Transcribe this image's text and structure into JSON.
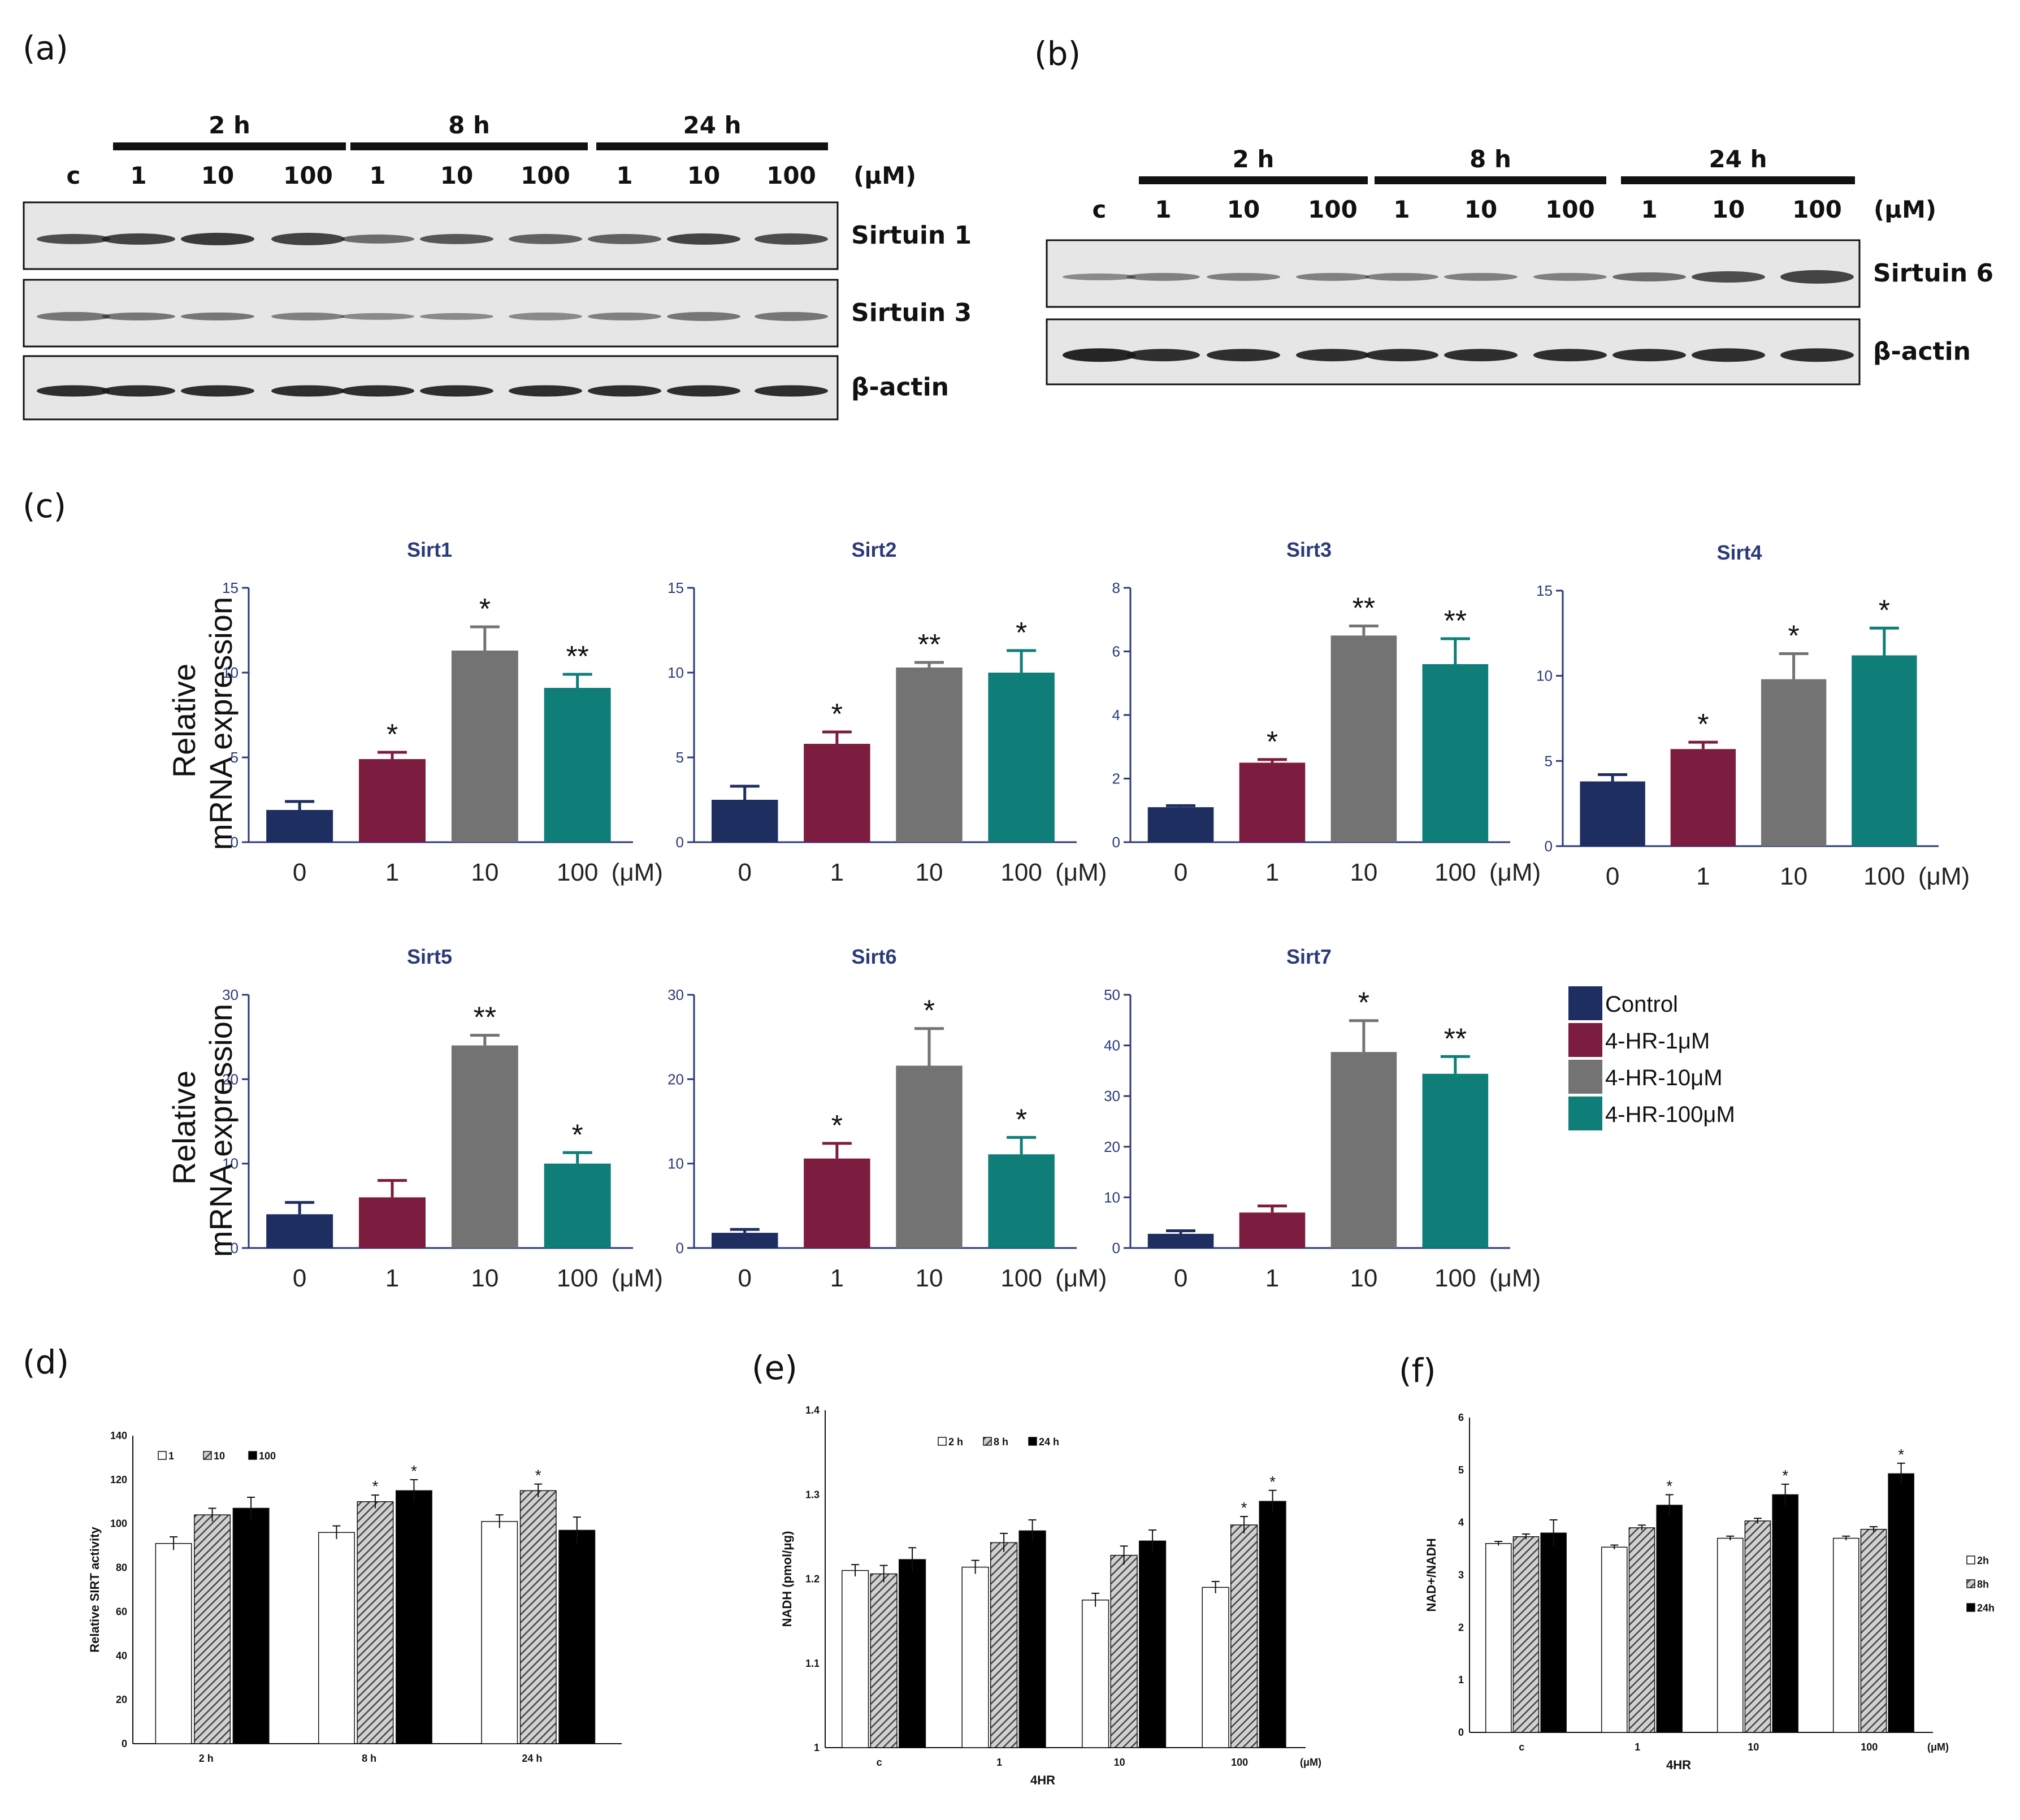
{
  "panels": {
    "a": "(a)",
    "b": "(b)",
    "c": "(c)",
    "d": "(d)",
    "e": "(e)",
    "f": "(f)"
  },
  "blots": {
    "time_headers": [
      "2 h",
      "8 h",
      "24 h"
    ],
    "control_label": "c",
    "dose_labels": [
      "1",
      "10",
      "100",
      "1",
      "10",
      "100",
      "1",
      "10",
      "100"
    ],
    "unit": "(μM)",
    "a_bands": [
      "Sirtuin 1",
      "Sirtuin 3",
      "β-actin"
    ],
    "b_bands": [
      "Sirtuin 6",
      "β-actin"
    ],
    "colors": {
      "band": "#1a1a1a",
      "membrane": "#e6e6e6"
    }
  },
  "panel_c": {
    "ylabel_line1": "Relative",
    "ylabel_line2": "mRNA expression",
    "colors": [
      "#1f2e60",
      "#7c1c3f",
      "#737373",
      "#0f7d78"
    ],
    "legend": [
      "Control",
      "4-HR-1μM",
      "4-HR-10μM",
      "4-HR-100μM"
    ]
  },
  "chart_data": [
    {
      "type": "bar",
      "title": "Sirt1",
      "categories": [
        "0",
        "1",
        "10",
        "100"
      ],
      "unit": "(μM)",
      "values": [
        1.9,
        4.9,
        11.3,
        9.1
      ],
      "errors": [
        0.5,
        0.4,
        1.4,
        0.8
      ],
      "sig": [
        "",
        "*",
        "*",
        "**"
      ],
      "ylim": [
        0,
        15
      ],
      "yticks": [
        "0",
        "5",
        "10",
        "15"
      ]
    },
    {
      "type": "bar",
      "title": "Sirt2",
      "categories": [
        "0",
        "1",
        "10",
        "100"
      ],
      "unit": "(μM)",
      "values": [
        2.5,
        5.8,
        10.3,
        10.0
      ],
      "errors": [
        0.8,
        0.7,
        0.3,
        1.3
      ],
      "sig": [
        "",
        "*",
        "**",
        "*"
      ],
      "ylim": [
        0,
        15
      ],
      "yticks": [
        "0",
        "5",
        "10",
        "15"
      ]
    },
    {
      "type": "bar",
      "title": "Sirt3",
      "categories": [
        "0",
        "1",
        "10",
        "100"
      ],
      "unit": "(μM)",
      "values": [
        1.1,
        2.5,
        6.5,
        5.6
      ],
      "errors": [
        0.05,
        0.1,
        0.3,
        0.8
      ],
      "sig": [
        "",
        "*",
        "**",
        "**"
      ],
      "ylim": [
        0,
        8
      ],
      "yticks": [
        "0",
        "2",
        "4",
        "6",
        "8"
      ]
    },
    {
      "type": "bar",
      "title": "Sirt4",
      "categories": [
        "0",
        "1",
        "10",
        "100"
      ],
      "unit": "(μM)",
      "values": [
        3.8,
        5.7,
        9.8,
        11.2
      ],
      "errors": [
        0.4,
        0.4,
        1.5,
        1.6
      ],
      "sig": [
        "",
        "*",
        "*",
        "*"
      ],
      "ylim": [
        0,
        15
      ],
      "yticks": [
        "0",
        "5",
        "10",
        "15"
      ]
    },
    {
      "type": "bar",
      "title": "Sirt5",
      "categories": [
        "0",
        "1",
        "10",
        "100"
      ],
      "unit": "(μM)",
      "values": [
        4.0,
        6.0,
        24.0,
        10.0
      ],
      "errors": [
        1.4,
        2.0,
        1.2,
        1.3
      ],
      "sig": [
        "",
        "",
        "**",
        "*"
      ],
      "ylim": [
        0,
        30
      ],
      "yticks": [
        "0",
        "10",
        "20",
        "30"
      ]
    },
    {
      "type": "bar",
      "title": "Sirt6",
      "categories": [
        "0",
        "1",
        "10",
        "100"
      ],
      "unit": "(μM)",
      "values": [
        1.8,
        10.6,
        21.6,
        11.1
      ],
      "errors": [
        0.4,
        1.8,
        4.4,
        2.0
      ],
      "sig": [
        "",
        "*",
        "*",
        "*"
      ],
      "ylim": [
        0,
        30
      ],
      "yticks": [
        "0",
        "10",
        "20",
        "30"
      ]
    },
    {
      "type": "bar",
      "title": "Sirt7",
      "categories": [
        "0",
        "1",
        "10",
        "100"
      ],
      "unit": "(μM)",
      "values": [
        2.8,
        7.0,
        38.7,
        34.4
      ],
      "errors": [
        0.6,
        1.3,
        6.2,
        3.4
      ],
      "sig": [
        "",
        "",
        "*",
        "**"
      ],
      "ylim": [
        0,
        50
      ],
      "yticks": [
        "0",
        "10",
        "20",
        "30",
        "40",
        "50"
      ]
    },
    {
      "type": "bar",
      "panel": "(d)",
      "ylabel": "Relative SIRT activity",
      "categories": [
        "2 h",
        "8 h",
        "24 h"
      ],
      "legend": [
        "1",
        "10",
        "100"
      ],
      "series": [
        {
          "name": "1",
          "values": [
            91,
            96,
            101
          ],
          "errors": [
            3,
            3,
            3
          ]
        },
        {
          "name": "10",
          "values": [
            104,
            110,
            115
          ],
          "errors": [
            3,
            3,
            3
          ]
        },
        {
          "name": "100",
          "values": [
            107,
            115,
            97
          ],
          "errors": [
            5,
            5,
            6
          ]
        }
      ],
      "sig": [
        [
          "",
          "",
          ""
        ],
        [
          "",
          "*",
          "*"
        ],
        [
          "",
          "*",
          ""
        ]
      ],
      "ylim": [
        0,
        140
      ],
      "yticks": [
        "0",
        "20",
        "40",
        "60",
        "80",
        "100",
        "120",
        "140"
      ]
    },
    {
      "type": "bar",
      "panel": "(e)",
      "ylabel": "NADH (pmol/μg)",
      "xlabel": "4HR",
      "unit": "(μM)",
      "categories": [
        "c",
        "1",
        "10",
        "100"
      ],
      "legend": [
        "2 h",
        "8 h",
        "24 h"
      ],
      "series": [
        {
          "name": "2 h",
          "values": [
            1.21,
            1.214,
            1.175,
            1.19
          ],
          "errors": [
            0.007,
            0.008,
            0.008,
            0.007
          ]
        },
        {
          "name": "8 h",
          "values": [
            1.206,
            1.243,
            1.228,
            1.264
          ],
          "errors": [
            0.01,
            0.011,
            0.011,
            0.01
          ]
        },
        {
          "name": "24 h",
          "values": [
            1.223,
            1.257,
            1.245,
            1.292
          ],
          "errors": [
            0.014,
            0.013,
            0.013,
            0.013
          ]
        }
      ],
      "sig": [
        [
          "",
          "",
          ""
        ],
        [
          "",
          "",
          ""
        ],
        [
          "",
          "",
          ""
        ],
        [
          "",
          "*",
          "*"
        ]
      ],
      "ylim": [
        1.0,
        1.4
      ],
      "yticks": [
        "1",
        "1.1",
        "1.2",
        "1.3",
        "1.4"
      ]
    },
    {
      "type": "bar",
      "panel": "(f)",
      "ylabel": "NAD+/NADH",
      "xlabel": "4HR",
      "unit": "(μM)",
      "categories": [
        "c",
        "1",
        "10",
        "100"
      ],
      "legend": [
        "2h",
        "8h",
        "24h"
      ],
      "series": [
        {
          "name": "2h",
          "values": [
            3.6,
            3.53,
            3.7,
            3.7
          ],
          "errors": [
            0.04,
            0.04,
            0.04,
            0.04
          ]
        },
        {
          "name": "8h",
          "values": [
            3.73,
            3.9,
            4.03,
            3.87
          ],
          "errors": [
            0.05,
            0.05,
            0.05,
            0.05
          ]
        },
        {
          "name": "24h",
          "values": [
            3.8,
            4.33,
            4.53,
            4.93
          ],
          "errors": [
            0.25,
            0.2,
            0.2,
            0.2
          ]
        }
      ],
      "sig": [
        [
          "",
          "",
          ""
        ],
        [
          "",
          "",
          "*"
        ],
        [
          "",
          "",
          "*"
        ],
        [
          "",
          "",
          "*"
        ]
      ],
      "ylim": [
        0,
        6
      ],
      "yticks": [
        "0",
        "1",
        "2",
        "3",
        "4",
        "5",
        "6"
      ]
    }
  ]
}
